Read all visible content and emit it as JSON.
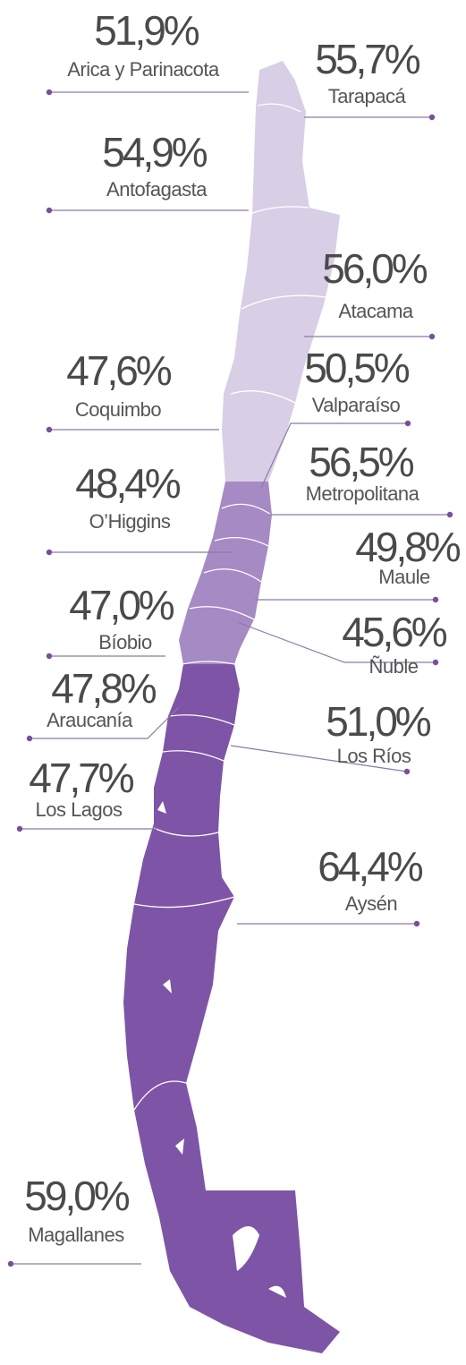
{
  "regions": [
    {
      "name": "Arica y Parinacota",
      "value": "51,9%"
    },
    {
      "name": "Tarapacá",
      "value": "55,7%"
    },
    {
      "name": "Antofagasta",
      "value": "54,9%"
    },
    {
      "name": "Atacama",
      "value": "56,0%"
    },
    {
      "name": "Coquimbo",
      "value": "47,6%"
    },
    {
      "name": "Valparaíso",
      "value": "50,5%"
    },
    {
      "name": "Metropolitana",
      "value": "56,5%"
    },
    {
      "name": "O’Higgins",
      "value": "48,4%"
    },
    {
      "name": "Maule",
      "value": "49,8%"
    },
    {
      "name": "Bíobio",
      "value": "47,0%"
    },
    {
      "name": "Ñuble",
      "value": "45,6%"
    },
    {
      "name": "Araucanía",
      "value": "47,8%"
    },
    {
      "name": "Los Ríos",
      "value": "51,0%"
    },
    {
      "name": "Los Lagos",
      "value": "47,7%"
    },
    {
      "name": "Aysén",
      "value": "64,4%"
    },
    {
      "name": "Magallanes",
      "value": "59,0%"
    }
  ]
}
